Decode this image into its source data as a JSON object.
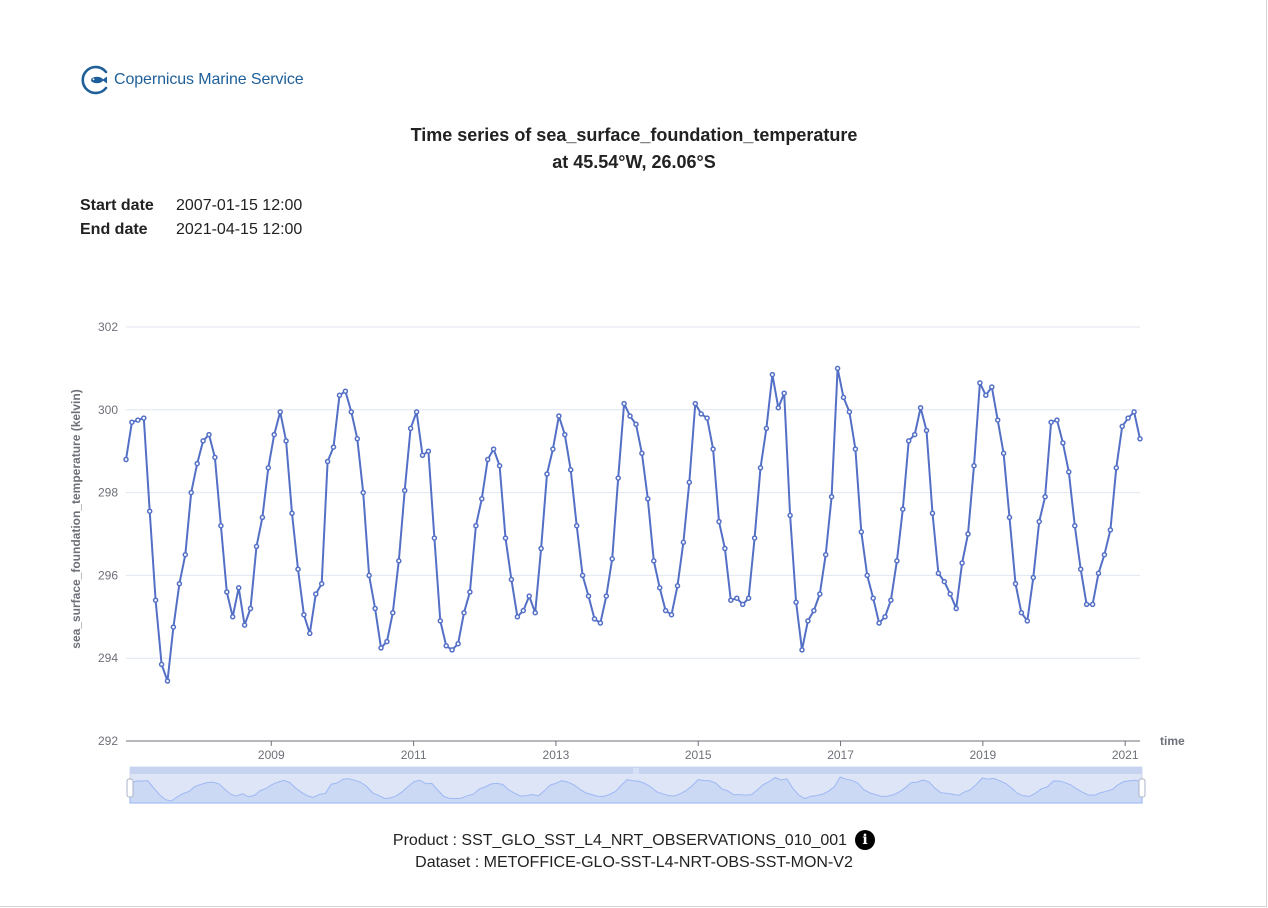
{
  "brand": {
    "name": "Copernicus Marine Service",
    "logo_icon": "fish-in-circle-icon"
  },
  "header": {
    "title_line1": "Time series of sea_surface_foundation_temperature",
    "title_line2": "at 45.54°W, 26.06°S"
  },
  "dates": {
    "start_label": "Start date",
    "start_value": "2007-01-15 12:00",
    "end_label": "End date",
    "end_value": "2021-04-15 12:00"
  },
  "footer": {
    "product": "Product : SST_GLO_SST_L4_NRT_OBSERVATIONS_010_001",
    "dataset": "Dataset : METOFFICE-GLO-SST-L4-NRT-OBS-SST-MON-V2",
    "info_icon": "info-icon"
  },
  "colors": {
    "series": "#5470c6",
    "zoom_fill": "#d7e2f9",
    "axis": "#6e7079",
    "grid": "#e0e6f1"
  },
  "chart_data": {
    "type": "line",
    "title": "",
    "xlabel": "time",
    "ylabel": "sea_surface_foundation_temperature (kelvin)",
    "ylim": [
      292,
      302
    ],
    "yticks": [
      292,
      294,
      296,
      298,
      300,
      302
    ],
    "xticks": [
      "2009",
      "2011",
      "2013",
      "2015",
      "2017",
      "2019",
      "2021"
    ],
    "grid": true,
    "x_start": "2007-01",
    "x_end": "2021-04",
    "series": [
      {
        "name": "",
        "values": [
          298.8,
          299.7,
          299.75,
          299.8,
          297.55,
          295.4,
          293.85,
          293.45,
          294.75,
          295.8,
          296.5,
          298.0,
          298.7,
          299.25,
          299.4,
          298.85,
          297.2,
          295.6,
          295.0,
          295.7,
          294.8,
          295.2,
          296.7,
          297.4,
          298.6,
          299.4,
          299.95,
          299.25,
          297.5,
          296.15,
          295.05,
          294.6,
          295.55,
          295.8,
          298.75,
          299.1,
          300.35,
          300.45,
          299.95,
          299.3,
          298.0,
          296.0,
          295.2,
          294.25,
          294.4,
          295.1,
          296.35,
          298.05,
          299.55,
          299.95,
          298.9,
          299.0,
          296.9,
          294.9,
          294.3,
          294.2,
          294.35,
          295.1,
          295.6,
          297.2,
          297.85,
          298.8,
          299.05,
          298.65,
          296.9,
          295.9,
          295.0,
          295.15,
          295.5,
          295.1,
          296.65,
          298.45,
          299.05,
          299.85,
          299.4,
          298.55,
          297.2,
          296.0,
          295.5,
          294.95,
          294.85,
          295.5,
          296.4,
          298.35,
          300.15,
          299.85,
          299.65,
          298.95,
          297.85,
          296.35,
          295.7,
          295.15,
          295.05,
          295.75,
          296.8,
          298.25,
          300.15,
          299.9,
          299.8,
          299.05,
          297.3,
          296.65,
          295.4,
          295.45,
          295.3,
          295.45,
          296.9,
          298.6,
          299.55,
          300.85,
          300.05,
          300.4,
          297.45,
          295.35,
          294.2,
          294.9,
          295.15,
          295.55,
          296.5,
          297.9,
          301.0,
          300.3,
          299.95,
          299.05,
          297.05,
          296.0,
          295.45,
          294.85,
          295.0,
          295.4,
          296.35,
          297.6,
          299.25,
          299.4,
          300.05,
          299.5,
          297.5,
          296.05,
          295.85,
          295.55,
          295.2,
          296.3,
          297.0,
          298.65,
          300.65,
          300.35,
          300.55,
          299.75,
          298.95,
          297.4,
          295.8,
          295.1,
          294.9,
          295.95,
          297.3,
          297.9,
          299.7,
          299.75,
          299.2,
          298.5,
          297.2,
          296.15,
          295.3,
          295.3,
          296.05,
          296.5,
          297.1,
          298.6,
          299.6,
          299.8,
          299.95,
          299.3
        ]
      }
    ]
  }
}
